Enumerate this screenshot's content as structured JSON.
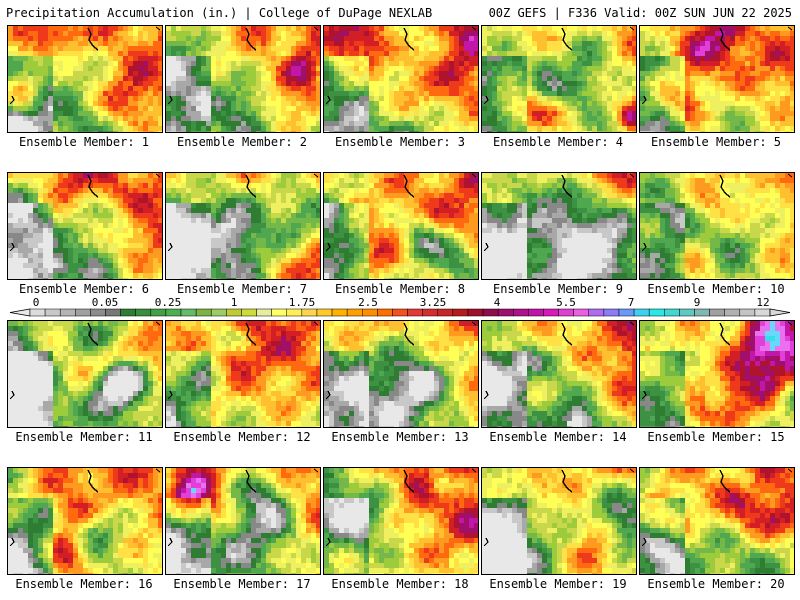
{
  "header": {
    "left": "Precipitation Accumulation (in.) | College of DuPage NEXLAB",
    "right": "00Z GEFS | F336 Valid: 00Z SUN JUN 22 2025"
  },
  "scale": {
    "labels": [
      "0",
      "0.05",
      "0.25",
      "1",
      "1.75",
      "2.5",
      "3.25",
      "4",
      "5.5",
      "7",
      "9",
      "12"
    ],
    "colors": [
      "#dcdcdc",
      "#c8c8c8",
      "#b4b4b4",
      "#a0a0a0",
      "#8c8c8c",
      "#787878",
      "#2e7d32",
      "#388e3c",
      "#43a047",
      "#4caf50",
      "#66bb6a",
      "#7cb342",
      "#9ccc65",
      "#c0ca33",
      "#cddc39",
      "#e6ee9c",
      "#ffff66",
      "#ffee58",
      "#ffd54f",
      "#ffca28",
      "#ffb300",
      "#ffa000",
      "#ff8f00",
      "#ff6f00",
      "#f4511e",
      "#e53935",
      "#d32f2f",
      "#c62828",
      "#b71c1c",
      "#a0102a",
      "#8e0e4a",
      "#9c1070",
      "#b0108c",
      "#c214a8",
      "#d81bb8",
      "#e040d0",
      "#ea60e0",
      "#b06cf0",
      "#8c7cf8",
      "#6e98f8",
      "#3fd0f0",
      "#28e8e8",
      "#40d8d0",
      "#60c8c0",
      "#80b8b0",
      "#a0a0a0",
      "#b0b0b0",
      "#c4c4c4",
      "#d8d8d8"
    ]
  },
  "panels": [
    {
      "caption": "Ensemble Member: 1"
    },
    {
      "caption": "Ensemble Member: 2"
    },
    {
      "caption": "Ensemble Member: 3"
    },
    {
      "caption": "Ensemble Member: 4"
    },
    {
      "caption": "Ensemble Member: 5"
    },
    {
      "caption": "Ensemble Member: 6"
    },
    {
      "caption": "Ensemble Member: 7"
    },
    {
      "caption": "Ensemble Member: 8"
    },
    {
      "caption": "Ensemble Member: 9"
    },
    {
      "caption": "Ensemble Member: 10"
    },
    {
      "caption": "Ensemble Member: 11"
    },
    {
      "caption": "Ensemble Member: 12"
    },
    {
      "caption": "Ensemble Member: 13"
    },
    {
      "caption": "Ensemble Member: 14"
    },
    {
      "caption": "Ensemble Member: 15"
    },
    {
      "caption": "Ensemble Member: 16"
    },
    {
      "caption": "Ensemble Member: 17"
    },
    {
      "caption": "Ensemble Member: 18"
    },
    {
      "caption": "Ensemble Member: 19"
    },
    {
      "caption": "Ensemble Member: 20"
    }
  ]
}
